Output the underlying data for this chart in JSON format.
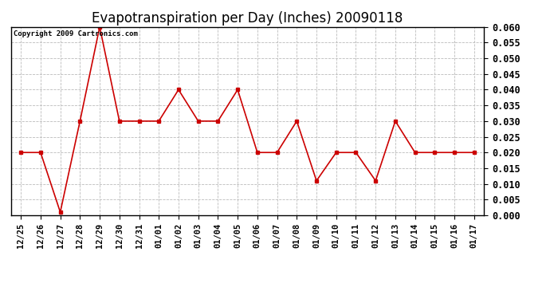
{
  "title": "Evapotranspiration per Day (Inches) 20090118",
  "copyright_text": "Copyright 2009 Cartronics.com",
  "x_labels": [
    "12/25",
    "12/26",
    "12/27",
    "12/28",
    "12/29",
    "12/30",
    "12/31",
    "01/01",
    "01/02",
    "01/03",
    "01/04",
    "01/05",
    "01/06",
    "01/07",
    "01/08",
    "01/09",
    "01/10",
    "01/11",
    "01/12",
    "01/13",
    "01/14",
    "01/15",
    "01/16",
    "01/17"
  ],
  "y_values": [
    0.02,
    0.02,
    0.001,
    0.03,
    0.06,
    0.03,
    0.03,
    0.03,
    0.04,
    0.03,
    0.03,
    0.04,
    0.02,
    0.02,
    0.03,
    0.011,
    0.02,
    0.02,
    0.011,
    0.03,
    0.02,
    0.02,
    0.02,
    0.02
  ],
  "line_color": "#cc0000",
  "marker": "s",
  "marker_size": 3,
  "marker_color": "#cc0000",
  "ylim": [
    0.0,
    0.06
  ],
  "yticks": [
    0.0,
    0.005,
    0.01,
    0.015,
    0.02,
    0.025,
    0.03,
    0.035,
    0.04,
    0.045,
    0.05,
    0.055,
    0.06
  ],
  "grid_color": "#bbbbbb",
  "grid_linestyle": "--",
  "bg_color": "#ffffff",
  "plot_bg_color": "#ffffff",
  "title_fontsize": 12,
  "copyright_fontsize": 6.5,
  "tick_fontsize": 7.5,
  "ytick_fontsize": 8.5
}
